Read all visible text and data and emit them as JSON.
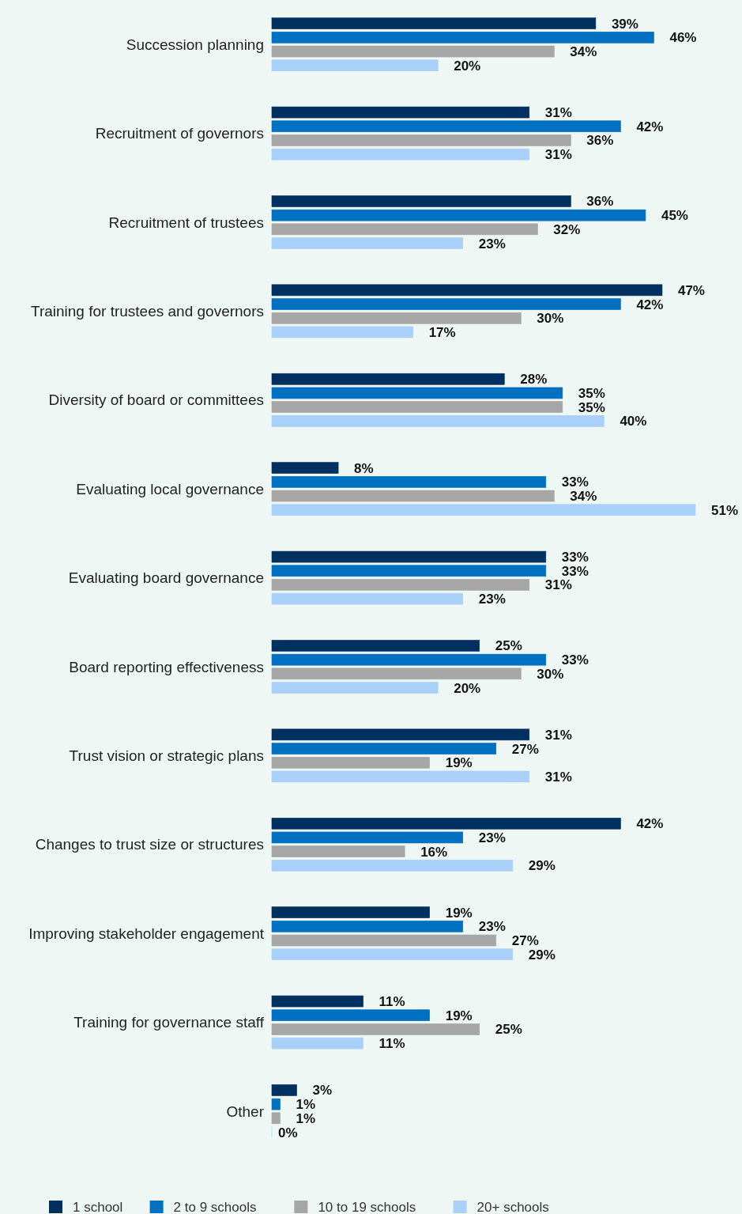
{
  "chart_data": {
    "type": "bar",
    "orientation": "horizontal",
    "categories": [
      "Succession planning",
      "Recruitment of governors",
      "Recruitment of trustees",
      "Training for trustees and governors",
      "Diversity of board or committees",
      "Evaluating local governance",
      "Evaluating board governance",
      "Board reporting effectiveness",
      "Trust vision or strategic plans",
      "Changes to trust size or structures",
      "Improving stakeholder engagement",
      "Training for governance staff",
      "Other"
    ],
    "series": [
      {
        "name": "1 school",
        "color": "#003060",
        "values": [
          39,
          31,
          36,
          47,
          28,
          8,
          33,
          25,
          31,
          42,
          19,
          11,
          3
        ],
        "value_labels": [
          "39%",
          "31%",
          "36%",
          "47%",
          "28%",
          "8%",
          "33%",
          "25%",
          "31%",
          "42%",
          "19%",
          "11%",
          "3%"
        ]
      },
      {
        "name": "2 to 9 schools",
        "color": "#0070c0",
        "values": [
          46,
          42,
          45,
          42,
          35,
          33,
          33,
          33,
          27,
          23,
          23,
          19,
          1
        ],
        "value_labels": [
          "46%",
          "42%",
          "45%",
          "42%",
          "35%",
          "33%",
          "33%",
          "33%",
          "27%",
          "23%",
          "23%",
          "19%",
          "1%"
        ]
      },
      {
        "name": "10 to 19 schools",
        "color": "#a6a6a6",
        "values": [
          34,
          36,
          32,
          30,
          35,
          34,
          31,
          30,
          19,
          16,
          27,
          25,
          1
        ],
        "value_labels": [
          "34%",
          "36%",
          "32%",
          "30%",
          "35%",
          "34%",
          "31%",
          "30%",
          "19%",
          "16%",
          "27%",
          "25%",
          "1%"
        ]
      },
      {
        "name": "20+ schools",
        "color": "#a8d0f8",
        "values": [
          20,
          31,
          23,
          17,
          40,
          51,
          23,
          20,
          31,
          29,
          29,
          11,
          0
        ],
        "value_labels": [
          "20%",
          "31%",
          "23%",
          "17%",
          "40%",
          "51%",
          "23%",
          "20%",
          "31%",
          "29%",
          "29%",
          "11%",
          "0%"
        ]
      }
    ],
    "xlim": [
      0,
      51
    ],
    "tick_labels": "y",
    "legend": "bottom"
  }
}
